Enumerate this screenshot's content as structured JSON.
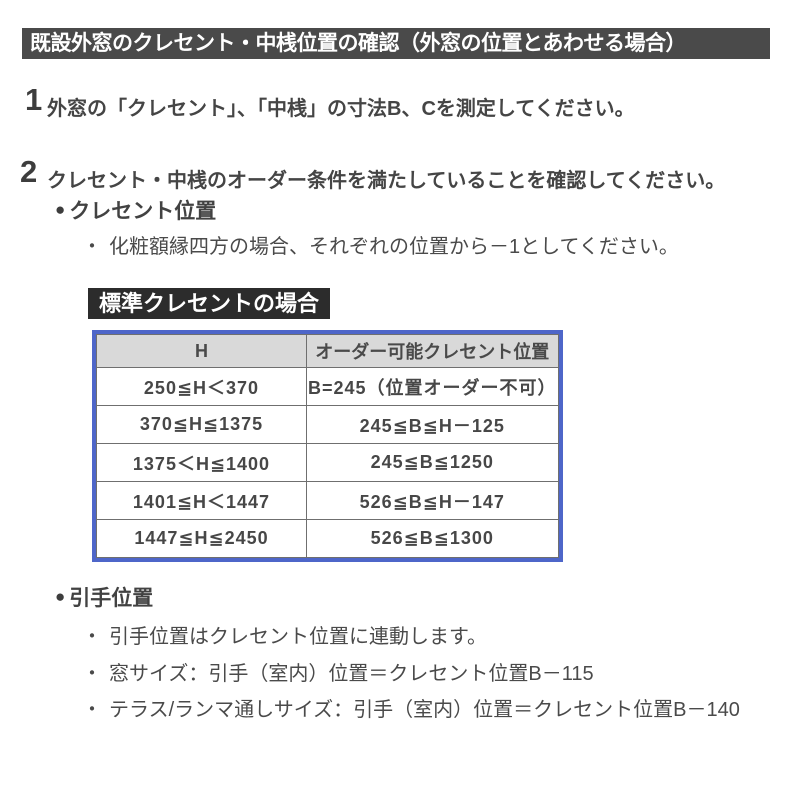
{
  "page": {
    "title": "既設外窓のクレセント・中桟位置の確認（外窓の位置とあわせる場合）"
  },
  "glyphs": {
    "bullet": "●",
    "dot": "・"
  },
  "steps": [
    {
      "number": "1",
      "text": "外窓の「クレセント」、「中桟」の寸法B、Cを測定してください。"
    },
    {
      "number": "2",
      "text": "クレセント・中桟のオーダー条件を満たしていることを確認してください。"
    }
  ],
  "crescent_section": {
    "bullet_label": "クレセント位置",
    "note": "化粧額縁四方の場合、それぞれの位置から－1としてください。",
    "table_heading": "標準クレセントの場合",
    "table": {
      "headers": [
        "H",
        "オーダー可能クレセント位置"
      ],
      "rows": [
        {
          "h": "250≦H＜370",
          "b": "B=245（位置オーダー不可）"
        },
        {
          "h": "370≦H≦1375",
          "b": "245≦B≦H－125"
        },
        {
          "h": "1375＜H≦1400",
          "b": "245≦B≦1250"
        },
        {
          "h": "1401≦H＜1447",
          "b": "526≦B≦H－147"
        },
        {
          "h": "1447≦H≦2450",
          "b": "526≦B≦1300"
        }
      ]
    }
  },
  "hikite_section": {
    "bullet_label": "引手位置",
    "notes": [
      "引手位置はクレセント位置に連動します。",
      "窓サイズ：引手（室内）位置＝クレセント位置B－115",
      "テラス/ランマ通しサイズ：引手（室内）位置＝クレセント位置B－140"
    ]
  },
  "colors": {
    "title_bar_bg": "#4a4a4a",
    "heading_box_bg": "#2c2c2c",
    "table_border_blue": "#4e66c9",
    "table_header_bg": "#d9d9d9",
    "body_text": "#454545"
  }
}
